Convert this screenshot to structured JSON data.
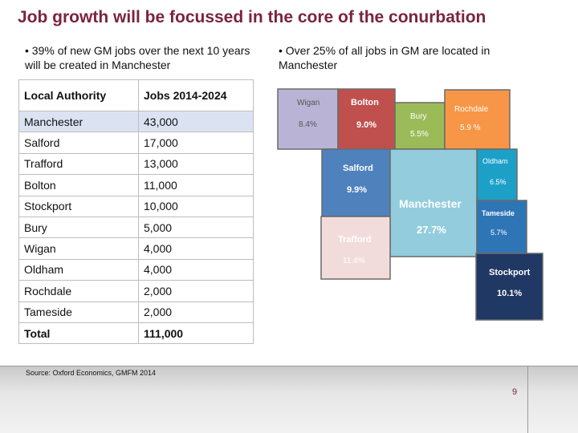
{
  "slide": {
    "title": "Job growth will be focussed in the core of the conurbation",
    "bullet_left": "• 39% of new GM jobs over the next 10 years will be created in Manchester",
    "bullet_right": "• Over 25% of all jobs in GM are located in Manchester",
    "source": "Source: Oxford Economics, GMFM 2014",
    "page_number": "9"
  },
  "table": {
    "headers": [
      "Local Authority",
      "Jobs 2014-2024"
    ],
    "rows": [
      {
        "name": "Manchester",
        "jobs": "43,000"
      },
      {
        "name": "Salford",
        "jobs": "17,000"
      },
      {
        "name": "Trafford",
        "jobs": "13,000"
      },
      {
        "name": "Bolton",
        "jobs": "11,000"
      },
      {
        "name": "Stockport",
        "jobs": "10,000"
      },
      {
        "name": "Bury",
        "jobs": "5,000"
      },
      {
        "name": "Wigan",
        "jobs": "4,000"
      },
      {
        "name": "Oldham",
        "jobs": "4,000"
      },
      {
        "name": "Rochdale",
        "jobs": "2,000"
      },
      {
        "name": "Tameside",
        "jobs": "2,000"
      }
    ],
    "total": {
      "name": "Total",
      "jobs": "111,000"
    }
  },
  "map": {
    "regions": [
      {
        "name": "Wigan",
        "share": "8.4%",
        "color": "#b9b4d6"
      },
      {
        "name": "Bolton",
        "share": "9.0%",
        "color": "#c0504d"
      },
      {
        "name": "Bury",
        "share": "5.5%",
        "color": "#9bbb59"
      },
      {
        "name": "Rochdale",
        "share": "5.9 %",
        "color": "#f79646"
      },
      {
        "name": "Oldham",
        "share": "6.5%",
        "color": "#1ca0c8"
      },
      {
        "name": "Salford",
        "share": "9.9%",
        "color": "#4f81bd"
      },
      {
        "name": "Manchester",
        "share": "27.7%",
        "color": "#93cddd"
      },
      {
        "name": "Tameside",
        "share": "5.7%",
        "color": "#2e75b6"
      },
      {
        "name": "Trafford",
        "share": "11.4%",
        "color": "#f2dcdb"
      },
      {
        "name": "Stockport",
        "share": "10.1%",
        "color": "#1f3864"
      }
    ]
  }
}
